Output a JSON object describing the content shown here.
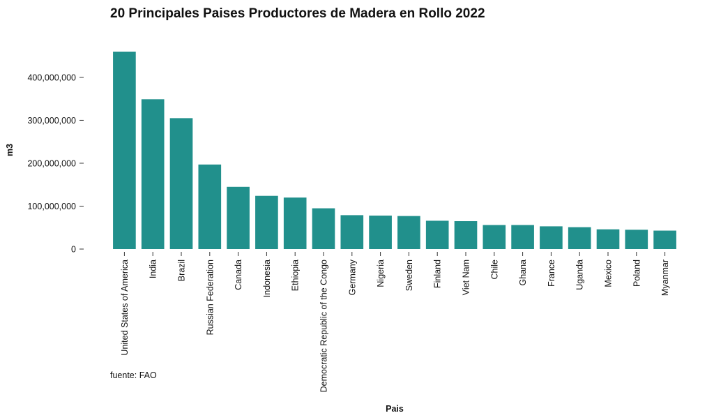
{
  "chart_data": {
    "type": "bar",
    "title": "20 Principales Paises Productores de Madera en Rollo 2022",
    "xlabel": "Pais",
    "ylabel": "m3",
    "caption": "fuente: FAO",
    "categories": [
      "United States of America",
      "India",
      "Brazil",
      "Russian Federation",
      "Canada",
      "Indonesia",
      "Ethiopia",
      "Democratic Republic of the Congo",
      "Germany",
      "Nigeria",
      "Sweden",
      "Finland",
      "Viet Nam",
      "Chile",
      "Ghana",
      "France",
      "Uganda",
      "Mexico",
      "Poland",
      "Myanmar"
    ],
    "values": [
      460000000,
      349000000,
      305000000,
      197000000,
      145000000,
      124000000,
      120000000,
      95000000,
      79000000,
      78000000,
      77000000,
      66000000,
      65000000,
      56000000,
      56000000,
      53000000,
      51000000,
      46000000,
      45000000,
      43000000
    ],
    "yticks": [
      0,
      100000000,
      200000000,
      300000000,
      400000000
    ],
    "ytick_labels": [
      "0",
      "100,000,000",
      "200,000,000",
      "300,000,000",
      "400,000,000"
    ],
    "ylim": [
      0,
      460000000
    ],
    "grid": false,
    "legend": "none",
    "bar_color": "#21908C"
  }
}
